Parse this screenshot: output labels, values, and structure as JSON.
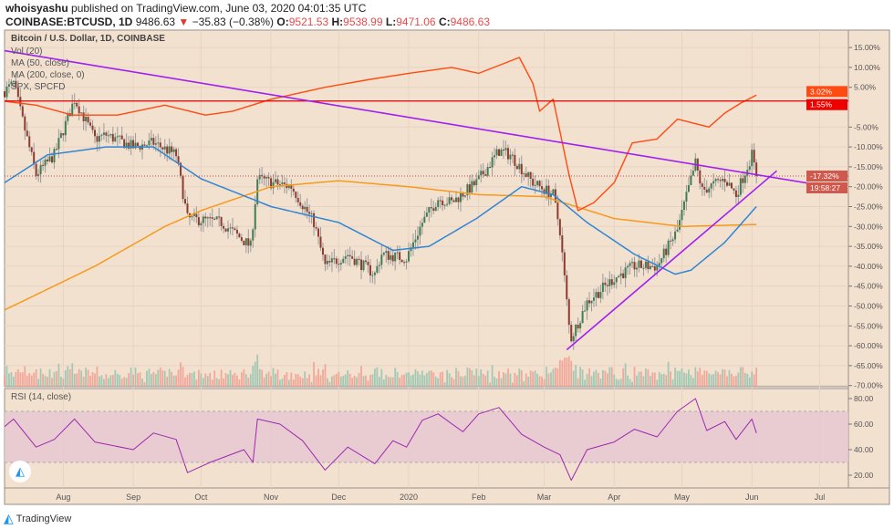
{
  "header": {
    "author": "whoisyashu",
    "published_text": "published on TradingView.com, June 03, 2020 04:01:35 UTC",
    "symbol": "COINBASE:BTCUSD, 1D",
    "last": "9486.63",
    "change": "−35.83 (−0.38%)",
    "open_label": "O:",
    "open": "9521.53",
    "high_label": "H:",
    "high": "9538.99",
    "low_label": "L:",
    "low": "9471.06",
    "close_label": "C:",
    "close": "9486.63"
  },
  "legend": {
    "title": "Bitcoin / U.S. Dollar, 1D, COINBASE",
    "vol": "Vol (20)",
    "ma50": "MA (50, close)",
    "ma200": "MA (200, close, 0)",
    "spx": "SPX, SPCFD",
    "rsi": "RSI (14, close)"
  },
  "colors": {
    "background": "#f3e1d0",
    "candle_up": "#3f7d52",
    "candle_down": "#8e3a2e",
    "ma50": "#2f86d4",
    "ma200": "#f79a1c",
    "spx": "#ff4a12",
    "trendline": "#a020f0",
    "rsi": "#9c27b0",
    "rsi_band": "#e6c7d2"
  },
  "price_axis": {
    "ticks": [
      "15.00%",
      "10.00%",
      "5.00%",
      "-5.00%",
      "-10.00%",
      "-15.00%",
      "-20.00%",
      "-25.00%",
      "-30.00%",
      "-35.00%",
      "-40.00%",
      "-45.00%",
      "-50.00%",
      "-55.00%",
      "-60.00%",
      "-65.00%",
      "-70.00%"
    ],
    "tick_values": [
      15,
      10,
      5,
      -5,
      -10,
      -15,
      -20,
      -25,
      -30,
      -35,
      -40,
      -45,
      -50,
      -55,
      -60,
      -65,
      -70
    ],
    "labels": {
      "spx_last": "3.02%",
      "hline": "1.55%",
      "btc_last": "-17.32%",
      "countdown": "19:58:27"
    }
  },
  "rsi_axis": {
    "ticks": [
      "80.00",
      "60.00",
      "40.00",
      "20.00"
    ],
    "tick_values": [
      80,
      60,
      40,
      20
    ],
    "band": [
      30,
      70
    ]
  },
  "time_axis": {
    "labels": [
      "Aug",
      "Sep",
      "Oct",
      "Nov",
      "Dec",
      "2020",
      "Feb",
      "Mar",
      "Apr",
      "May",
      "Jun",
      "Jul"
    ],
    "dates": [
      "2019-08-01",
      "2019-09-01",
      "2019-10-01",
      "2019-11-01",
      "2019-12-01",
      "2020-01-01",
      "2020-02-01",
      "2020-03-01",
      "2020-04-01",
      "2020-05-01",
      "2020-06-01",
      "2020-07-01"
    ]
  },
  "chart_data": {
    "type": "candlestick",
    "y_unit": "percent",
    "ylim": [
      -72,
      18
    ],
    "btc_close": [
      [
        "2019-07-06",
        4
      ],
      [
        "2019-07-10",
        6
      ],
      [
        "2019-07-16",
        -8
      ],
      [
        "2019-07-20",
        -17
      ],
      [
        "2019-07-28",
        -12
      ],
      [
        "2019-08-06",
        2
      ],
      [
        "2019-08-15",
        -8
      ],
      [
        "2019-08-20",
        -7
      ],
      [
        "2019-09-01",
        -10
      ],
      [
        "2019-09-10",
        -9
      ],
      [
        "2019-09-20",
        -12
      ],
      [
        "2019-09-25",
        -28
      ],
      [
        "2019-10-10",
        -29
      ],
      [
        "2019-10-23",
        -35
      ],
      [
        "2019-10-26",
        -18
      ],
      [
        "2019-11-01",
        -19
      ],
      [
        "2019-11-10",
        -20
      ],
      [
        "2019-11-20",
        -29
      ],
      [
        "2019-11-25",
        -40
      ],
      [
        "2019-12-05",
        -37
      ],
      [
        "2019-12-17",
        -42
      ],
      [
        "2019-12-20",
        -37
      ],
      [
        "2019-12-31",
        -38
      ],
      [
        "2020-01-07",
        -29
      ],
      [
        "2020-01-14",
        -23
      ],
      [
        "2020-01-20",
        -24
      ],
      [
        "2020-01-31",
        -19
      ],
      [
        "2020-02-10",
        -11
      ],
      [
        "2020-02-15",
        -12
      ],
      [
        "2020-02-25",
        -19
      ],
      [
        "2020-03-05",
        -22
      ],
      [
        "2020-03-08",
        -31
      ],
      [
        "2020-03-12",
        -55
      ],
      [
        "2020-03-13",
        -58
      ],
      [
        "2020-03-20",
        -49
      ],
      [
        "2020-04-01",
        -43
      ],
      [
        "2020-04-10",
        -40
      ],
      [
        "2020-04-20",
        -40
      ],
      [
        "2020-04-29",
        -31
      ],
      [
        "2020-05-07",
        -14
      ],
      [
        "2020-05-10",
        -21
      ],
      [
        "2020-05-20",
        -18
      ],
      [
        "2020-05-25",
        -22
      ],
      [
        "2020-06-01",
        -12
      ],
      [
        "2020-06-03",
        -17.32
      ]
    ],
    "ma50": [
      [
        "2019-07-06",
        -19
      ],
      [
        "2019-07-25",
        -12
      ],
      [
        "2019-08-20",
        -10
      ],
      [
        "2019-09-10",
        -10
      ],
      [
        "2019-10-01",
        -18
      ],
      [
        "2019-11-01",
        -25
      ],
      [
        "2019-12-01",
        -29
      ],
      [
        "2019-12-25",
        -36
      ],
      [
        "2020-01-10",
        -35
      ],
      [
        "2020-01-31",
        -28
      ],
      [
        "2020-02-20",
        -20
      ],
      [
        "2020-03-05",
        -22
      ],
      [
        "2020-03-20",
        -29
      ],
      [
        "2020-04-10",
        -37
      ],
      [
        "2020-04-28",
        -42
      ],
      [
        "2020-05-05",
        -41
      ],
      [
        "2020-05-20",
        -34
      ],
      [
        "2020-06-03",
        -25
      ]
    ],
    "ma200": [
      [
        "2019-07-06",
        -51
      ],
      [
        "2019-08-15",
        -40
      ],
      [
        "2019-09-15",
        -30
      ],
      [
        "2019-10-01",
        -26
      ],
      [
        "2019-11-01",
        -20
      ],
      [
        "2019-12-01",
        -18.5
      ],
      [
        "2020-01-01",
        -20
      ],
      [
        "2020-02-01",
        -22
      ],
      [
        "2020-03-01",
        -22.5
      ],
      [
        "2020-04-01",
        -28
      ],
      [
        "2020-05-01",
        -30
      ],
      [
        "2020-06-03",
        -29.5
      ]
    ],
    "spx": [
      [
        "2019-07-06",
        1.5
      ],
      [
        "2019-07-20",
        0.5
      ],
      [
        "2019-08-05",
        -2
      ],
      [
        "2019-08-25",
        -2
      ],
      [
        "2019-09-15",
        0.5
      ],
      [
        "2019-10-03",
        -2
      ],
      [
        "2019-10-15",
        -1
      ],
      [
        "2019-11-01",
        2
      ],
      [
        "2019-11-25",
        5
      ],
      [
        "2019-12-15",
        7
      ],
      [
        "2020-01-01",
        8.5
      ],
      [
        "2020-01-20",
        10
      ],
      [
        "2020-02-01",
        8.5
      ],
      [
        "2020-02-19",
        12.5
      ],
      [
        "2020-02-25",
        6
      ],
      [
        "2020-02-28",
        -1
      ],
      [
        "2020-03-05",
        2
      ],
      [
        "2020-03-12",
        -17
      ],
      [
        "2020-03-16",
        -26
      ],
      [
        "2020-03-23",
        -24
      ],
      [
        "2020-04-01",
        -19
      ],
      [
        "2020-04-09",
        -9
      ],
      [
        "2020-04-20",
        -8
      ],
      [
        "2020-04-29",
        -3
      ],
      [
        "2020-05-13",
        -5
      ],
      [
        "2020-05-20",
        -1.5
      ],
      [
        "2020-05-27",
        1
      ],
      [
        "2020-06-03",
        3.02
      ]
    ],
    "hline": 1.55,
    "trendline_down": [
      [
        "2019-07-06",
        14.2
      ],
      [
        "2020-06-30",
        -19.5
      ]
    ],
    "trendline_up": [
      [
        "2020-03-11",
        -61
      ],
      [
        "2020-06-12",
        -16
      ]
    ],
    "rsi": [
      [
        "2019-07-06",
        58
      ],
      [
        "2019-07-10",
        64
      ],
      [
        "2019-07-20",
        42
      ],
      [
        "2019-07-28",
        48
      ],
      [
        "2019-08-06",
        64
      ],
      [
        "2019-08-15",
        46
      ],
      [
        "2019-09-01",
        40
      ],
      [
        "2019-09-10",
        53
      ],
      [
        "2019-09-20",
        48
      ],
      [
        "2019-09-25",
        22
      ],
      [
        "2019-10-05",
        30
      ],
      [
        "2019-10-20",
        40
      ],
      [
        "2019-10-24",
        30
      ],
      [
        "2019-10-26",
        64
      ],
      [
        "2019-11-05",
        60
      ],
      [
        "2019-11-15",
        47
      ],
      [
        "2019-11-25",
        24
      ],
      [
        "2019-12-05",
        42
      ],
      [
        "2019-12-17",
        29
      ],
      [
        "2019-12-25",
        47
      ],
      [
        "2019-12-31",
        42
      ],
      [
        "2020-01-07",
        63
      ],
      [
        "2020-01-14",
        68
      ],
      [
        "2020-01-25",
        54
      ],
      [
        "2020-02-01",
        68
      ],
      [
        "2020-02-10",
        73
      ],
      [
        "2020-02-20",
        52
      ],
      [
        "2020-03-01",
        42
      ],
      [
        "2020-03-08",
        36
      ],
      [
        "2020-03-13",
        16
      ],
      [
        "2020-03-20",
        40
      ],
      [
        "2020-04-01",
        46
      ],
      [
        "2020-04-10",
        56
      ],
      [
        "2020-04-20",
        50
      ],
      [
        "2020-04-29",
        70
      ],
      [
        "2020-05-07",
        80
      ],
      [
        "2020-05-12",
        55
      ],
      [
        "2020-05-20",
        62
      ],
      [
        "2020-05-25",
        48
      ],
      [
        "2020-06-01",
        64
      ],
      [
        "2020-06-03",
        53
      ]
    ]
  },
  "footer": {
    "brand": "TradingView"
  }
}
